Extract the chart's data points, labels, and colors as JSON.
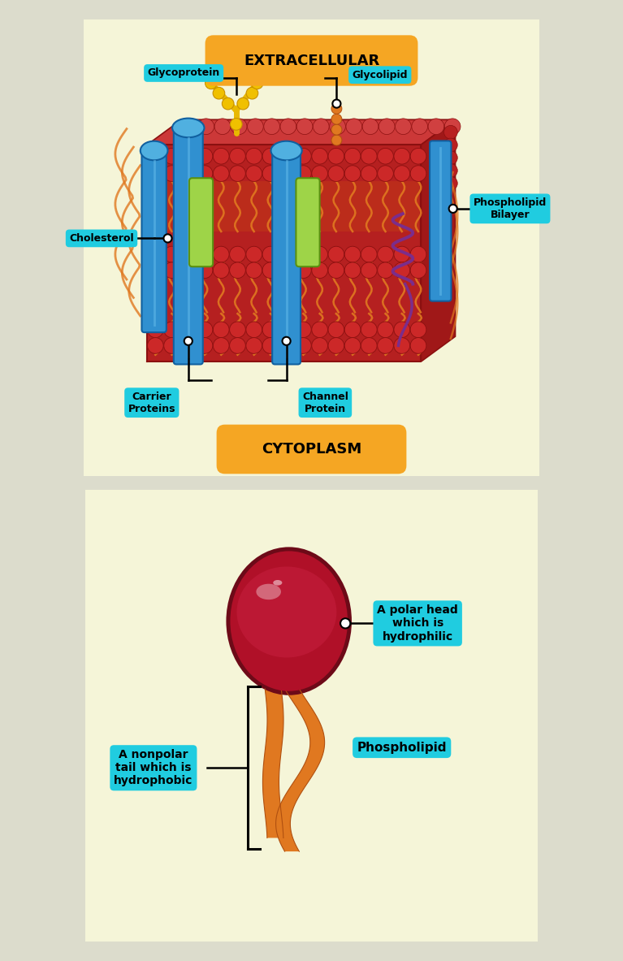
{
  "bg_color": "#f0f0e0",
  "panel_bg": "#f5f5d8",
  "extracellular_label": "EXTRACELLULAR",
  "cytoplasm_label": "CYTOPLASM",
  "extracellular_bg": "#f5a623",
  "cytoplasm_bg": "#f5a623",
  "label_box_color": "#20cce0",
  "labels": {
    "glycoprotein": "Glycoprotein",
    "glycolipid": "Glycolipid",
    "phospholipid_bilayer": "Phospholipid\nBilayer",
    "cholesterol": "Cholesterol",
    "carrier_proteins": "Carrier\nProteins",
    "channel_protein": "Channel\nProtein"
  },
  "bottom_labels": {
    "polar_head": "A polar head\nwhich is\nhydrophilic",
    "nonpolar_tail": "A nonpolar\ntail which is\nhydrophobic",
    "phospholipid": "Phospholipid"
  },
  "colors": {
    "membrane_red": "#c0392b",
    "membrane_dark_red": "#8b0000",
    "phospholipid_tail": "#e67e22",
    "blue_protein": "#3498db",
    "blue_protein_light": "#5dade2",
    "blue_protein_dark": "#1a6fa3",
    "green_protein": "#8dc63f",
    "glycoprotein_yellow": "#f1c40f",
    "glycolipid_purple": "#7b2d8b",
    "dark_outline": "#2c2c2c",
    "white": "#ffffff",
    "head_dark_red": "#6d0a1a",
    "head_red": "#b01030",
    "head_mid": "#a01828"
  }
}
